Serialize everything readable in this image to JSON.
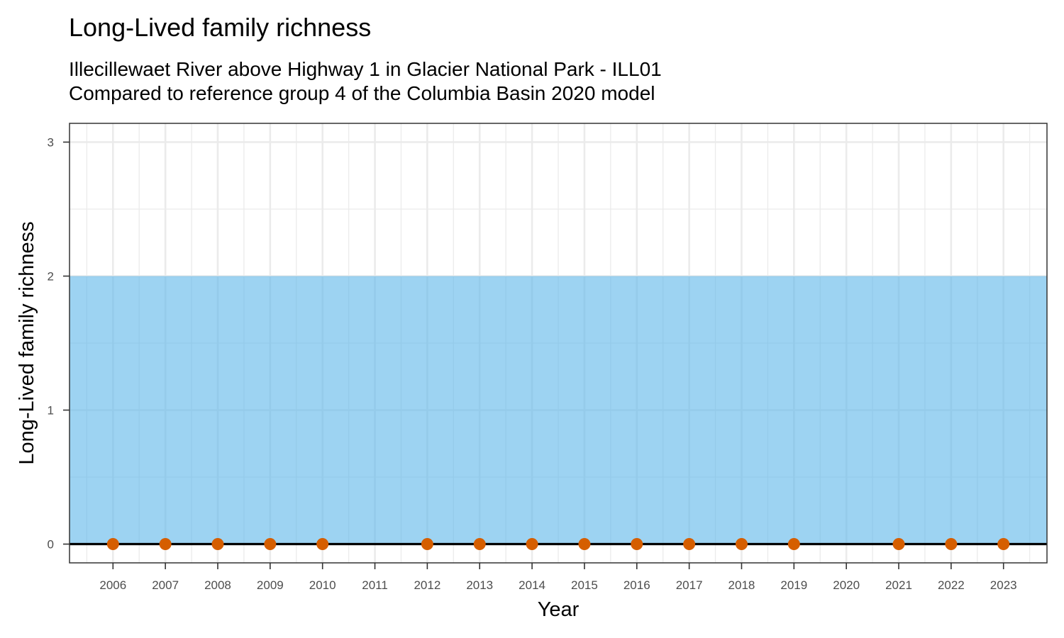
{
  "chart_data": {
    "type": "scatter",
    "title": "Long-Lived family richness",
    "subtitle_line1": "Illecillewaet River above Highway 1 in Glacier National Park - ILL01",
    "subtitle_line2": "Compared to reference group 4 of the Columbia Basin 2020 model",
    "xlabel": "Year",
    "ylabel": "Long-Lived family richness",
    "x_ticks": [
      2006,
      2007,
      2008,
      2009,
      2010,
      2011,
      2012,
      2013,
      2014,
      2015,
      2016,
      2017,
      2018,
      2019,
      2020,
      2021,
      2022,
      2023
    ],
    "y_ticks": [
      0,
      1,
      2,
      3
    ],
    "xlim": [
      2005.17,
      2023.83
    ],
    "ylim": [
      -0.14,
      3.14
    ],
    "grid": true,
    "reference_band": {
      "ymin": 0,
      "ymax": 2,
      "color": "#56B4E9"
    },
    "reference_line": {
      "y": 0,
      "color": "#000000"
    },
    "series": [
      {
        "color": "#D55E00",
        "points": [
          {
            "x": 2006,
            "y": 0
          },
          {
            "x": 2007,
            "y": 0
          },
          {
            "x": 2008,
            "y": 0
          },
          {
            "x": 2009,
            "y": 0
          },
          {
            "x": 2010,
            "y": 0
          },
          {
            "x": 2012,
            "y": 0
          },
          {
            "x": 2013,
            "y": 0
          },
          {
            "x": 2014,
            "y": 0
          },
          {
            "x": 2015,
            "y": 0
          },
          {
            "x": 2016,
            "y": 0
          },
          {
            "x": 2017,
            "y": 0
          },
          {
            "x": 2018,
            "y": 0
          },
          {
            "x": 2019,
            "y": 0
          },
          {
            "x": 2021,
            "y": 0
          },
          {
            "x": 2022,
            "y": 0
          },
          {
            "x": 2023,
            "y": 0
          }
        ]
      }
    ]
  }
}
